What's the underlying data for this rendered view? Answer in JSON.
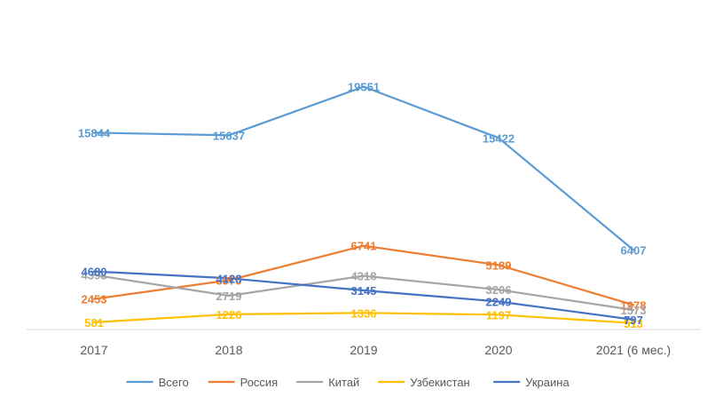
{
  "chart_data": {
    "type": "line",
    "title": "",
    "xlabel": "",
    "ylabel": "",
    "categories": [
      "2017",
      "2018",
      "2019",
      "2020",
      "2021 (6 мес.)"
    ],
    "ylim": [
      0,
      22000
    ],
    "grid": false,
    "legend_position": "bottom",
    "series": [
      {
        "name": "Всего",
        "color": "#5B9BD5",
        "values": [
          15844,
          15637,
          19551,
          15422,
          6407
        ]
      },
      {
        "name": "Россия",
        "color": "#ED7D31",
        "values": [
          2453,
          3970,
          6741,
          5189,
          1978
        ]
      },
      {
        "name": "Китай",
        "color": "#A5A5A5",
        "values": [
          4393,
          2719,
          4318,
          3206,
          1573
        ]
      },
      {
        "name": "Узбекистан",
        "color": "#FFC000",
        "values": [
          581,
          1226,
          1336,
          1197,
          513
        ]
      },
      {
        "name": "Украина",
        "color": "#4472C4",
        "values": [
          4680,
          4128,
          3145,
          2249,
          797
        ]
      }
    ]
  }
}
